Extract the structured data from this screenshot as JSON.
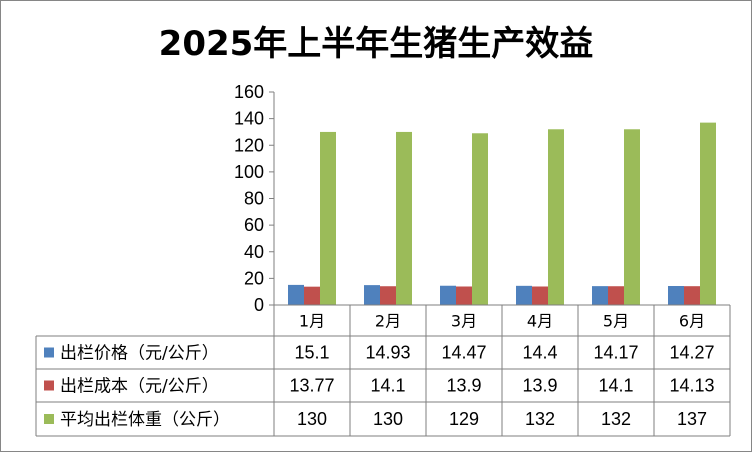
{
  "chart_data": {
    "type": "bar",
    "title": "2025年上半年生猪生产效益",
    "categories": [
      "1月",
      "2月",
      "3月",
      "4月",
      "5月",
      "6月"
    ],
    "ylim": [
      0,
      160
    ],
    "yticks": [
      "0",
      "20",
      "40",
      "60",
      "80",
      "100",
      "120",
      "140",
      "160"
    ],
    "grid": false,
    "legend": "data-table",
    "series": [
      {
        "name": "出栏价格（元/公斤）",
        "color": "#4f81bd",
        "values": [
          15.1,
          14.93,
          14.47,
          14.4,
          14.17,
          14.27
        ],
        "labels": [
          "15.1",
          "14.93",
          "14.47",
          "14.4",
          "14.17",
          "14.27"
        ]
      },
      {
        "name": "出栏成本（元/公斤）",
        "color": "#c0504d",
        "values": [
          13.77,
          14.1,
          13.9,
          13.9,
          14.1,
          14.13
        ],
        "labels": [
          "13.77",
          "14.1",
          "13.9",
          "13.9",
          "14.1",
          "14.13"
        ]
      },
      {
        "name": "平均出栏体重（公斤）",
        "color": "#9bbb59",
        "values": [
          130,
          130,
          129,
          132,
          132,
          137
        ],
        "labels": [
          "130",
          "130",
          "129",
          "132",
          "132",
          "137"
        ]
      }
    ]
  }
}
